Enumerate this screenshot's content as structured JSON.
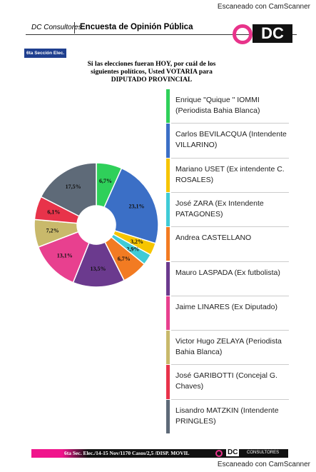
{
  "scanner_top": "Escaneado con CamScanner",
  "header": {
    "brand": "DC Consultores",
    "title": "Encuesta de Opinión Pública",
    "logo": "DC"
  },
  "badge": "6ta Sección Elec.",
  "chart_data": {
    "type": "donut",
    "title": "Si las elecciones fueran HOY, por cuál de los siguientes políticos, Usted VOTARIA para DIPUTADO PROVINCIAL",
    "categories": [
      "Enrique \"Quique \" IOMMI (Periodista Bahia Blanca)",
      "Carlos BEVILACQUA (Intendente VILLARINO)",
      "Mariano USET (Ex intendente C. ROSALES)",
      "José ZARA (Ex Intendente PATAGONES)",
      "Andrea CASTELLANO",
      "Mauro LASPADA (Ex futbolista)",
      "Jaime LINARES (Ex Diputado)",
      "Victor Hugo ZELAYA (Periodista Bahia Blanca)",
      "José GARIBOTTI (Concejal G. Chaves)",
      "Lisandro MATZKIN (Intendente PRINGLES)"
    ],
    "values": [
      6.7,
      23.1,
      3.2,
      2.9,
      6.7,
      13.5,
      13.1,
      7.2,
      6.1,
      17.5
    ],
    "value_labels": [
      "6,7%",
      "23,1%",
      "3,2%",
      "2,9%",
      "6,7%",
      "13,5%",
      "13,1%",
      "7,2%",
      "6,1%",
      "17,5%"
    ],
    "colors": [
      "#2fd05a",
      "#3b6fc6",
      "#f6c500",
      "#3fcbd6",
      "#f27b22",
      "#6b3a8e",
      "#e8408f",
      "#c9b96b",
      "#e8334a",
      "#5e6a78"
    ]
  },
  "footer": {
    "text": "6ta Sec. Elec./14-15 Nov/1170 Casos/2,5 /DISP. MOVIL",
    "logo": "DC",
    "logo_sub": "CONSULTORES"
  },
  "scanner_bottom": "Escaneado con CamScanner"
}
